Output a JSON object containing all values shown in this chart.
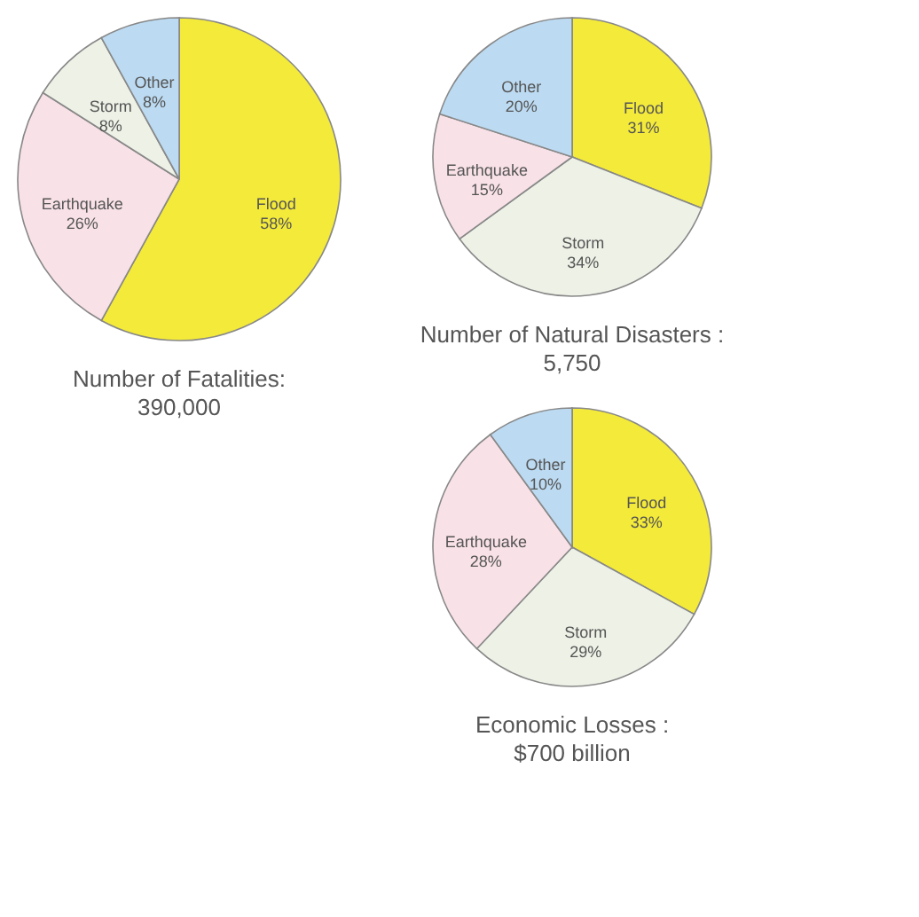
{
  "chart_data": [
    {
      "type": "pie",
      "title": "Number of Fatalities:",
      "subtitle": "390,000",
      "categories": [
        "Flood",
        "Earthquake",
        "Storm",
        "Other"
      ],
      "values": [
        58,
        26,
        8,
        8
      ],
      "value_labels": [
        "58%",
        "26%",
        "8%",
        "8%"
      ],
      "colors": [
        "#f4ea3a",
        "#f8e1e7",
        "#edf1e6",
        "#bcdaf1"
      ]
    },
    {
      "type": "pie",
      "title": "Number of Natural Disasters :",
      "subtitle": "5,750",
      "categories": [
        "Flood",
        "Storm",
        "Earthquake",
        "Other"
      ],
      "values": [
        31,
        34,
        15,
        20
      ],
      "value_labels": [
        "31%",
        "34%",
        "15%",
        "20%"
      ],
      "colors": [
        "#f4ea3a",
        "#edf1e6",
        "#f8e1e7",
        "#bcdaf1"
      ]
    },
    {
      "type": "pie",
      "title": "Economic Losses :",
      "subtitle": "$700 billion",
      "categories": [
        "Flood",
        "Storm",
        "Earthquake",
        "Other"
      ],
      "values": [
        33,
        29,
        28,
        10
      ],
      "value_labels": [
        "33%",
        "29%",
        "28%",
        "10%"
      ],
      "colors": [
        "#f4ea3a",
        "#edf1e6",
        "#f8e1e7",
        "#bcdaf1"
      ]
    }
  ]
}
